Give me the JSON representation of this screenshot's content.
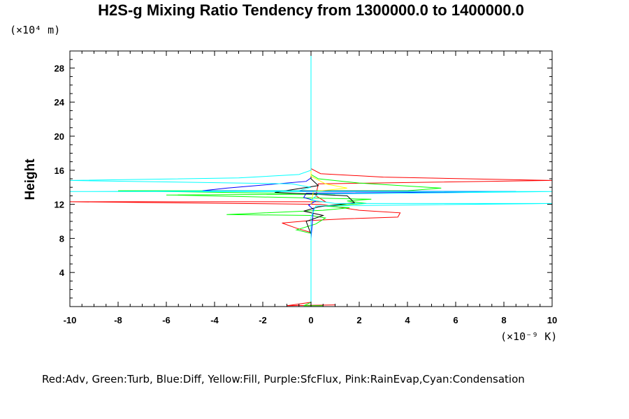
{
  "chart_data": {
    "type": "line",
    "title": "H2S-g Mixing Ratio Tendency from 1300000.0 to 1400000.0",
    "ylabel": "Height",
    "y_units": "(×10⁴ m)",
    "x_units": "(×10⁻⁹ K)",
    "xlim": [
      -10,
      10
    ],
    "ylim": [
      0,
      30
    ],
    "x_ticks": [
      -10,
      -8,
      -6,
      -4,
      -2,
      0,
      2,
      4,
      6,
      8,
      10
    ],
    "y_ticks": [
      4,
      8,
      12,
      16,
      20,
      24,
      28
    ],
    "x_tick_labels": [
      "-10",
      "-8",
      "-6",
      "-4",
      "-2",
      "0",
      "2",
      "4",
      "6",
      "8",
      "10"
    ],
    "y_tick_labels": [
      "4",
      "8",
      "12",
      "16",
      "20",
      "24",
      "28"
    ],
    "grid": false,
    "legend_text": "Red:Adv, Green:Turb, Blue:Diff, Yellow:Fill, Purple:SfcFlux, Pink:RainEvap,Cyan:Condensation",
    "series": [
      {
        "color": "#ff0000",
        "points": [
          [
            0,
            30
          ],
          [
            0,
            16.2
          ],
          [
            0.4,
            15.6
          ],
          [
            3,
            15.2
          ],
          [
            10,
            14.8
          ],
          [
            0.3,
            14.4
          ],
          [
            0.2,
            13.0
          ],
          [
            0.6,
            12.3
          ],
          [
            -10,
            12.3
          ],
          [
            0.4,
            12.0
          ],
          [
            2,
            11.3
          ],
          [
            3.7,
            11.0
          ],
          [
            3.6,
            10.5
          ],
          [
            1.5,
            10.3
          ],
          [
            0,
            10.1
          ],
          [
            -1.2,
            9.8
          ],
          [
            -0.6,
            9.2
          ],
          [
            0,
            8.7
          ],
          [
            0,
            0.5
          ],
          [
            -1,
            0.1
          ],
          [
            1,
            0.2
          ]
        ]
      },
      {
        "color": "#00ff00",
        "points": [
          [
            0,
            30
          ],
          [
            0,
            15.5
          ],
          [
            0.3,
            15.0
          ],
          [
            2,
            14.5
          ],
          [
            5.4,
            13.9
          ],
          [
            4,
            13.6
          ],
          [
            -8,
            13.6
          ],
          [
            1,
            13.2
          ],
          [
            -6,
            13.1
          ],
          [
            2.5,
            12.6
          ],
          [
            1.5,
            12.4
          ],
          [
            2.3,
            12.1
          ],
          [
            0.5,
            11.8
          ],
          [
            1.6,
            11.6
          ],
          [
            0.5,
            11.3
          ],
          [
            -3.5,
            10.8
          ],
          [
            0,
            10.7
          ],
          [
            0.6,
            10.4
          ],
          [
            0.2,
            9.7
          ],
          [
            -0.6,
            9.0
          ],
          [
            0,
            8.6
          ],
          [
            0,
            0.5
          ],
          [
            -0.3,
            0.1
          ],
          [
            0.5,
            0.1
          ]
        ]
      },
      {
        "color": "#0000ff",
        "points": [
          [
            0,
            30
          ],
          [
            0,
            15.1
          ],
          [
            -0.2,
            14.7
          ],
          [
            -3.5,
            13.9
          ],
          [
            -4.5,
            13.6
          ],
          [
            8.5,
            13.5
          ],
          [
            -0.2,
            13.3
          ],
          [
            -0.3,
            12.8
          ],
          [
            0.2,
            12.4
          ],
          [
            -0.1,
            11.9
          ],
          [
            0.1,
            11.4
          ],
          [
            0,
            8.0
          ]
        ]
      },
      {
        "color": "#000000",
        "points": [
          [
            0,
            30
          ],
          [
            0,
            15.0
          ],
          [
            0.3,
            14.2
          ],
          [
            -1.5,
            13.4
          ],
          [
            1.5,
            13.0
          ],
          [
            1.8,
            12.2
          ],
          [
            0.3,
            11.7
          ],
          [
            -0.3,
            11.2
          ],
          [
            0.5,
            10.7
          ],
          [
            -0.2,
            10.0
          ],
          [
            0,
            8.5
          ],
          [
            0,
            6.5
          ]
        ]
      },
      {
        "color": "#ffff00",
        "points": [
          [
            0,
            30
          ],
          [
            0,
            15.3
          ],
          [
            0.6,
            14.4
          ],
          [
            1.5,
            13.9
          ],
          [
            0.1,
            13.5
          ],
          [
            0,
            12.0
          ]
        ]
      },
      {
        "color": "#00ffff",
        "points": [
          [
            0,
            30
          ],
          [
            0,
            16.0
          ],
          [
            -0.5,
            15.5
          ],
          [
            -3,
            15.1
          ],
          [
            -10,
            14.8
          ],
          [
            -0.8,
            14.4
          ],
          [
            0,
            14.0
          ],
          [
            -0.5,
            13.6
          ],
          [
            -10,
            13.5
          ],
          [
            10,
            13.5
          ],
          [
            0.3,
            13.2
          ],
          [
            0,
            12.5
          ],
          [
            1,
            12.1
          ],
          [
            10,
            12.1
          ],
          [
            0.2,
            11.8
          ],
          [
            0,
            10.5
          ],
          [
            0,
            0
          ]
        ]
      }
    ]
  }
}
